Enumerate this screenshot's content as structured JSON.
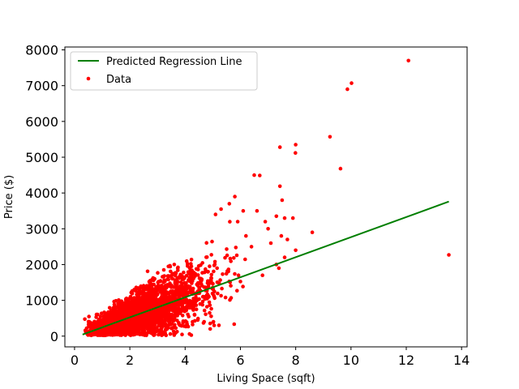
{
  "chart_data": {
    "type": "scatter",
    "title": "",
    "xlabel": "Living Space (sqft)",
    "ylabel": "Price ($)",
    "xlim": [
      -0.35,
      14.2
    ],
    "ylim": [
      -300,
      8080
    ],
    "xticks": [
      0,
      2,
      4,
      6,
      8,
      10,
      12,
      14
    ],
    "yticks": [
      0,
      1000,
      2000,
      3000,
      4000,
      5000,
      6000,
      7000,
      8000
    ],
    "grid": false,
    "legend_position": "upper-left",
    "colors": {
      "data": "#ff0000",
      "regression": "#007f00",
      "legend_border": "#cccccc"
    },
    "series": [
      {
        "name": "Predicted Regression Line",
        "kind": "line",
        "x": [
          0.29,
          13.54
        ],
        "y": [
          45,
          3760
        ]
      },
      {
        "name": "Data",
        "kind": "scatter",
        "outliers_x": [
          12.08,
          10.02,
          9.87,
          8.0,
          7.99,
          7.43,
          7.43,
          7.51,
          7.48,
          7.39,
          9.24,
          9.62,
          13.54,
          6.5,
          6.7,
          6.9,
          7.3,
          7.6,
          7.9,
          8.6,
          6.6,
          7.0,
          6.4,
          7.1,
          7.6,
          8.0,
          7.3,
          6.8,
          5.8,
          6.1,
          5.9,
          7.7,
          6.2,
          5.6,
          5.3,
          5.1
        ],
        "outliers_y": [
          7700,
          7070,
          6900,
          5350,
          5120,
          5280,
          4190,
          3800,
          2800,
          1900,
          5570,
          4680,
          2270,
          4500,
          4490,
          3200,
          3350,
          3300,
          3300,
          2900,
          3500,
          3000,
          2500,
          2600,
          2200,
          2400,
          2000,
          1700,
          3900,
          3500,
          3200,
          2700,
          2800,
          3700,
          3550,
          3400
        ]
      }
    ]
  }
}
